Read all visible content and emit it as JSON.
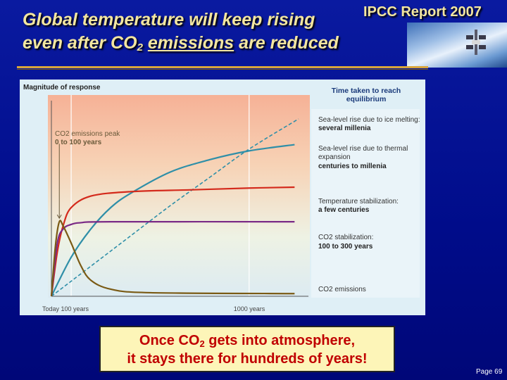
{
  "slide": {
    "title_line1": "Global temperature will keep rising",
    "title_line2_pre": "even after CO",
    "title_line2_sub": "2",
    "title_line2_emph": "emissions",
    "title_line2_post": "are reduced",
    "source": "IPCC Report 2007",
    "bottom_line1_pre": "Once CO",
    "bottom_line1_sub": "2",
    "bottom_line1_post": "gets into atmosphere,",
    "bottom_line2": "it stays there for hundreds of years!",
    "page": "Page 69",
    "colors": {
      "background": "#000c8a",
      "title": "#f3e6a0",
      "rule": "#d8a53c",
      "callout_bg": "#fdf5b8",
      "callout_text": "#c00000"
    }
  },
  "chart_data": {
    "type": "line",
    "ylabel": "Magnitude of response",
    "legend_title": "Time taken to reach equilibrium",
    "peak_annotation": [
      "CO2 emissions peak",
      "0 to 100 years"
    ],
    "x_ticks": [
      {
        "x": 0,
        "label": "Today"
      },
      {
        "x": 100,
        "label": "100 years"
      },
      {
        "x": 1000,
        "label": "1000 years"
      }
    ],
    "xlim": [
      0,
      1300
    ],
    "ylim": [
      0,
      1
    ],
    "grid": "vertical lines at tick positions",
    "series": [
      {
        "name": "Sea-level rise due to ice melting",
        "note": "several millenia",
        "style": "dashed",
        "color": "#2f8fa8",
        "points": [
          [
            0,
            0
          ],
          [
            200,
            0.17
          ],
          [
            400,
            0.34
          ],
          [
            600,
            0.51
          ],
          [
            800,
            0.67
          ],
          [
            1000,
            0.83
          ],
          [
            1250,
            1.0
          ]
        ]
      },
      {
        "name": "Sea-level rise due to thermal expansion",
        "note": "centuries to millenia",
        "style": "solid",
        "color": "#2f8fa8",
        "points": [
          [
            0,
            0
          ],
          [
            100,
            0.22
          ],
          [
            200,
            0.38
          ],
          [
            300,
            0.5
          ],
          [
            400,
            0.58
          ],
          [
            600,
            0.7
          ],
          [
            800,
            0.77
          ],
          [
            1000,
            0.82
          ],
          [
            1230,
            0.855
          ]
        ]
      },
      {
        "name": "Temperature stabilization",
        "note": "a few centuries",
        "style": "solid",
        "color": "#d42a1c",
        "points": [
          [
            0,
            0
          ],
          [
            30,
            0.25
          ],
          [
            60,
            0.4
          ],
          [
            100,
            0.5
          ],
          [
            200,
            0.565
          ],
          [
            400,
            0.59
          ],
          [
            700,
            0.6
          ],
          [
            1000,
            0.61
          ],
          [
            1230,
            0.615
          ]
        ]
      },
      {
        "name": "CO2 stabilization",
        "note": "100 to 300 years",
        "style": "solid",
        "color": "#7a2a86",
        "points": [
          [
            0,
            0
          ],
          [
            30,
            0.3
          ],
          [
            60,
            0.38
          ],
          [
            100,
            0.405
          ],
          [
            150,
            0.415
          ],
          [
            300,
            0.42
          ],
          [
            1230,
            0.42
          ]
        ]
      },
      {
        "name": "CO2 emissions",
        "note": "",
        "style": "solid",
        "color": "#7a5a14",
        "points": [
          [
            0,
            0
          ],
          [
            20,
            0.28
          ],
          [
            40,
            0.42
          ],
          [
            60,
            0.395
          ],
          [
            100,
            0.3
          ],
          [
            150,
            0.17
          ],
          [
            200,
            0.09
          ],
          [
            300,
            0.04
          ],
          [
            500,
            0.02
          ],
          [
            1230,
            0.015
          ]
        ]
      }
    ]
  }
}
